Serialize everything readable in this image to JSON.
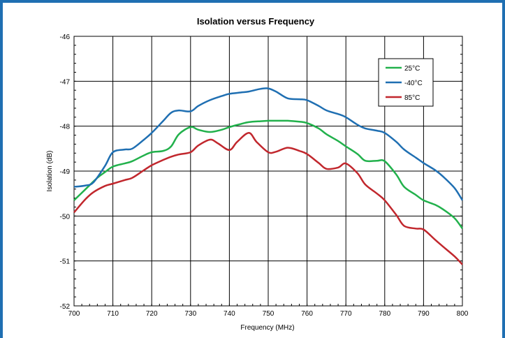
{
  "chart_data": {
    "type": "line",
    "title": "Isolation versus Frequency",
    "xlabel": "Frequency (MHz)",
    "ylabel": "Isolation (dB)",
    "xlim": [
      700,
      800
    ],
    "ylim": [
      -52,
      -46
    ],
    "xticks": [
      "700",
      "710",
      "720",
      "730",
      "740",
      "750",
      "760",
      "770",
      "780",
      "790",
      "800"
    ],
    "yticks": [
      "-46",
      "-47",
      "-48",
      "-49",
      "-50",
      "-51",
      "-52"
    ],
    "grid": true,
    "legend_position": "top-right",
    "series": [
      {
        "name": "25°C",
        "color": "#22b14c",
        "x": [
          700,
          703,
          706,
          708,
          710,
          713,
          715,
          718,
          720,
          723,
          725,
          727,
          730,
          732,
          735,
          738,
          740,
          743,
          745,
          748,
          750,
          752,
          755,
          758,
          760,
          763,
          765,
          768,
          770,
          773,
          775,
          778,
          780,
          783,
          785,
          788,
          790,
          793,
          795,
          798,
          800
        ],
        "y": [
          -49.65,
          -49.4,
          -49.15,
          -49.02,
          -48.9,
          -48.83,
          -48.78,
          -48.65,
          -48.58,
          -48.55,
          -48.45,
          -48.18,
          -48.02,
          -48.08,
          -48.13,
          -48.08,
          -48.02,
          -47.95,
          -47.91,
          -47.89,
          -47.88,
          -47.88,
          -47.88,
          -47.9,
          -47.93,
          -48.05,
          -48.18,
          -48.33,
          -48.45,
          -48.62,
          -48.77,
          -48.77,
          -48.78,
          -49.08,
          -49.35,
          -49.53,
          -49.65,
          -49.75,
          -49.85,
          -50.05,
          -50.28
        ]
      },
      {
        "name": "-40°C",
        "color": "#1f6fb2",
        "x": [
          700,
          703,
          705,
          708,
          710,
          713,
          715,
          718,
          720,
          723,
          725,
          727,
          730,
          732,
          735,
          738,
          740,
          743,
          745,
          748,
          750,
          752,
          755,
          758,
          760,
          763,
          765,
          768,
          770,
          773,
          775,
          778,
          780,
          783,
          785,
          788,
          790,
          793,
          795,
          798,
          800
        ],
        "y": [
          -49.35,
          -49.32,
          -49.25,
          -48.88,
          -48.58,
          -48.52,
          -48.5,
          -48.3,
          -48.15,
          -47.88,
          -47.7,
          -47.65,
          -47.67,
          -47.55,
          -47.42,
          -47.33,
          -47.28,
          -47.25,
          -47.23,
          -47.17,
          -47.16,
          -47.23,
          -47.38,
          -47.4,
          -47.42,
          -47.55,
          -47.65,
          -47.73,
          -47.8,
          -47.97,
          -48.05,
          -48.1,
          -48.15,
          -48.35,
          -48.52,
          -48.7,
          -48.82,
          -48.98,
          -49.12,
          -49.38,
          -49.65
        ]
      },
      {
        "name": "85°C",
        "color": "#c1272d",
        "x": [
          700,
          703,
          705,
          708,
          710,
          713,
          715,
          718,
          720,
          723,
          725,
          727,
          730,
          732,
          735,
          737,
          740,
          742,
          745,
          747,
          750,
          752,
          755,
          758,
          760,
          763,
          765,
          768,
          770,
          773,
          775,
          778,
          780,
          783,
          785,
          788,
          790,
          793,
          795,
          798,
          800
        ],
        "y": [
          -49.92,
          -49.62,
          -49.47,
          -49.33,
          -49.28,
          -49.2,
          -49.15,
          -48.98,
          -48.87,
          -48.75,
          -48.68,
          -48.63,
          -48.58,
          -48.43,
          -48.3,
          -48.38,
          -48.53,
          -48.35,
          -48.15,
          -48.35,
          -48.58,
          -48.57,
          -48.48,
          -48.55,
          -48.62,
          -48.82,
          -48.95,
          -48.92,
          -48.83,
          -49.05,
          -49.3,
          -49.5,
          -49.65,
          -49.98,
          -50.22,
          -50.28,
          -50.3,
          -50.53,
          -50.68,
          -50.9,
          -51.08
        ]
      }
    ]
  }
}
